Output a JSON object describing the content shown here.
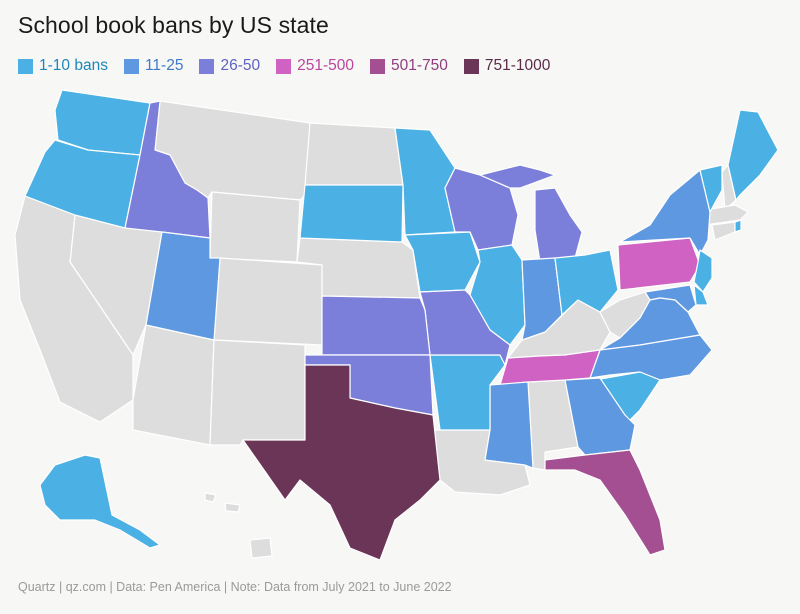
{
  "title": "School book bans by US state",
  "legend": [
    {
      "label": "1-10 bans",
      "color": "#4bb0e4",
      "text_color": "#1f86b8"
    },
    {
      "label": "11-25",
      "color": "#5e98e0",
      "text_color": "#3f7bc9"
    },
    {
      "label": "26-50",
      "color": "#7b7fd9",
      "text_color": "#5f63c2"
    },
    {
      "label": "251-500",
      "color": "#cf62c2",
      "text_color": "#b9459f"
    },
    {
      "label": "501-750",
      "color": "#a44f92",
      "text_color": "#8f3d7f"
    },
    {
      "label": "751-1000",
      "color": "#6b3558",
      "text_color": "#5c2a4b"
    }
  ],
  "no_data_color": "#dddddd",
  "footer": "Quartz | qz.com | Data: Pen America | Note: Data from July 2021 to June 2022",
  "state_categories": {
    "washington": "1-10 bans",
    "oregon": "1-10 bans",
    "idaho": "26-50",
    "utah": "11-25",
    "south-dakota": "1-10 bans",
    "minnesota": "1-10 bans",
    "iowa": "1-10 bans",
    "illinois": "1-10 bans",
    "wisconsin": "26-50",
    "michigan": "26-50",
    "indiana": "11-25",
    "ohio": "1-10 bans",
    "pennsylvania": "251-500",
    "new-york": "11-25",
    "vermont": "1-10 bans",
    "maine": "1-10 bans",
    "new-jersey": "1-10 bans",
    "maryland": "11-25",
    "delaware": "1-10 bans",
    "virginia": "11-25",
    "north-carolina": "11-25",
    "south-carolina": "1-10 bans",
    "georgia": "11-25",
    "florida": "501-750",
    "tennessee": "251-500",
    "mississippi": "11-25",
    "arkansas": "1-10 bans",
    "missouri": "26-50",
    "kansas": "26-50",
    "oklahoma": "26-50",
    "texas": "751-1000",
    "alaska": "1-10 bans",
    "rhode-island": "1-10 bans"
  }
}
